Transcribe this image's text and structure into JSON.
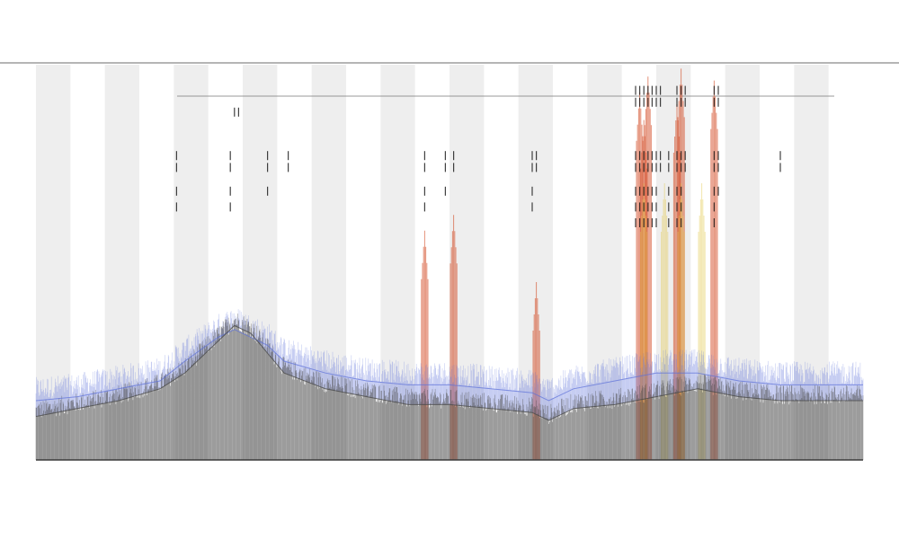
{
  "header": {
    "title": "",
    "subtitle_1": "",
    "subtitle_2": ""
  },
  "legend": {
    "placement": "left",
    "entries": []
  },
  "chart_data": {
    "type": "area",
    "title": "",
    "xlabel": "",
    "ylabel": "",
    "grid": false,
    "band_count": 24,
    "xlim": [
      0,
      1
    ],
    "ylim": [
      0,
      1
    ],
    "colors": {
      "background": "#ffffff",
      "band": "#eeeeee",
      "baseline": "#3a3a3a",
      "axis": "#222222",
      "gray_series": "#4a4a4a",
      "blue_series": "#5b6fd9",
      "red_peaks": "#d2461f",
      "yellow_peaks": "#e2c84a",
      "black_ticks": "#111111"
    },
    "series": [
      {
        "x": [
          0.0,
          0.05,
          0.1,
          0.15,
          0.18,
          0.22,
          0.24,
          0.26,
          0.28,
          0.3,
          0.35,
          0.4,
          0.45,
          0.5,
          0.55,
          0.6,
          0.62,
          0.65,
          0.7,
          0.75,
          0.8,
          0.85,
          0.9,
          0.95,
          1.0
        ],
        "values": [
          0.11,
          0.13,
          0.15,
          0.18,
          0.22,
          0.3,
          0.34,
          0.32,
          0.27,
          0.22,
          0.18,
          0.16,
          0.14,
          0.14,
          0.13,
          0.12,
          0.1,
          0.13,
          0.14,
          0.16,
          0.18,
          0.16,
          0.15,
          0.15,
          0.15
        ]
      },
      {
        "x": [
          0.0,
          0.05,
          0.1,
          0.15,
          0.18,
          0.22,
          0.24,
          0.26,
          0.28,
          0.3,
          0.35,
          0.4,
          0.45,
          0.5,
          0.55,
          0.6,
          0.62,
          0.65,
          0.7,
          0.75,
          0.8,
          0.85,
          0.9,
          0.95,
          1.0
        ],
        "values": [
          0.15,
          0.16,
          0.18,
          0.2,
          0.25,
          0.31,
          0.33,
          0.31,
          0.29,
          0.25,
          0.22,
          0.2,
          0.19,
          0.19,
          0.18,
          0.17,
          0.15,
          0.18,
          0.2,
          0.22,
          0.22,
          0.2,
          0.19,
          0.19,
          0.19
        ]
      }
    ],
    "peaks": [
      {
        "x": 0.73,
        "value": 0.93,
        "color": "red"
      },
      {
        "x": 0.735,
        "value": 0.86,
        "color": "red"
      },
      {
        "x": 0.74,
        "value": 0.97,
        "color": "red"
      },
      {
        "x": 0.775,
        "value": 0.9,
        "color": "red"
      },
      {
        "x": 0.78,
        "value": 0.99,
        "color": "red"
      },
      {
        "x": 0.82,
        "value": 0.96,
        "color": "red"
      },
      {
        "x": 0.47,
        "value": 0.58,
        "color": "red"
      },
      {
        "x": 0.505,
        "value": 0.62,
        "color": "red"
      },
      {
        "x": 0.605,
        "value": 0.45,
        "color": "red"
      },
      {
        "x": 0.735,
        "value": 0.7,
        "color": "yellow"
      },
      {
        "x": 0.76,
        "value": 0.7,
        "color": "yellow"
      },
      {
        "x": 0.78,
        "value": 0.7,
        "color": "yellow"
      },
      {
        "x": 0.805,
        "value": 0.7,
        "color": "yellow"
      }
    ],
    "annotation_rows": [
      {
        "y": 0.935,
        "xs": [
          0.725,
          0.73,
          0.735,
          0.74,
          0.745,
          0.75,
          0.755,
          0.775,
          0.78,
          0.785,
          0.82,
          0.825
        ]
      },
      {
        "y": 0.905,
        "xs": [
          0.725,
          0.73,
          0.735,
          0.74,
          0.745,
          0.75,
          0.755,
          0.775,
          0.78,
          0.785,
          0.82,
          0.825
        ]
      },
      {
        "y": 0.88,
        "xs": [
          0.24,
          0.245
        ]
      },
      {
        "y": 0.77,
        "xs": [
          0.17,
          0.235,
          0.28,
          0.305,
          0.47,
          0.495,
          0.505,
          0.6,
          0.605,
          0.725,
          0.73,
          0.735,
          0.74,
          0.745,
          0.75,
          0.755,
          0.765,
          0.775,
          0.78,
          0.785,
          0.82,
          0.825,
          0.9
        ]
      },
      {
        "y": 0.74,
        "xs": [
          0.17,
          0.235,
          0.28,
          0.305,
          0.47,
          0.495,
          0.505,
          0.6,
          0.605,
          0.725,
          0.73,
          0.735,
          0.74,
          0.745,
          0.75,
          0.755,
          0.765,
          0.775,
          0.78,
          0.785,
          0.82,
          0.825,
          0.9
        ]
      },
      {
        "y": 0.68,
        "xs": [
          0.17,
          0.235,
          0.28,
          0.47,
          0.495,
          0.6,
          0.725,
          0.73,
          0.735,
          0.74,
          0.745,
          0.75,
          0.765,
          0.775,
          0.78,
          0.82,
          0.825
        ]
      },
      {
        "y": 0.64,
        "xs": [
          0.17,
          0.235,
          0.47,
          0.6,
          0.725,
          0.73,
          0.735,
          0.74,
          0.745,
          0.75,
          0.765,
          0.775,
          0.78,
          0.82
        ]
      },
      {
        "y": 0.6,
        "xs": [
          0.725,
          0.73,
          0.735,
          0.74,
          0.745,
          0.75,
          0.765,
          0.775,
          0.78,
          0.82
        ]
      }
    ]
  }
}
